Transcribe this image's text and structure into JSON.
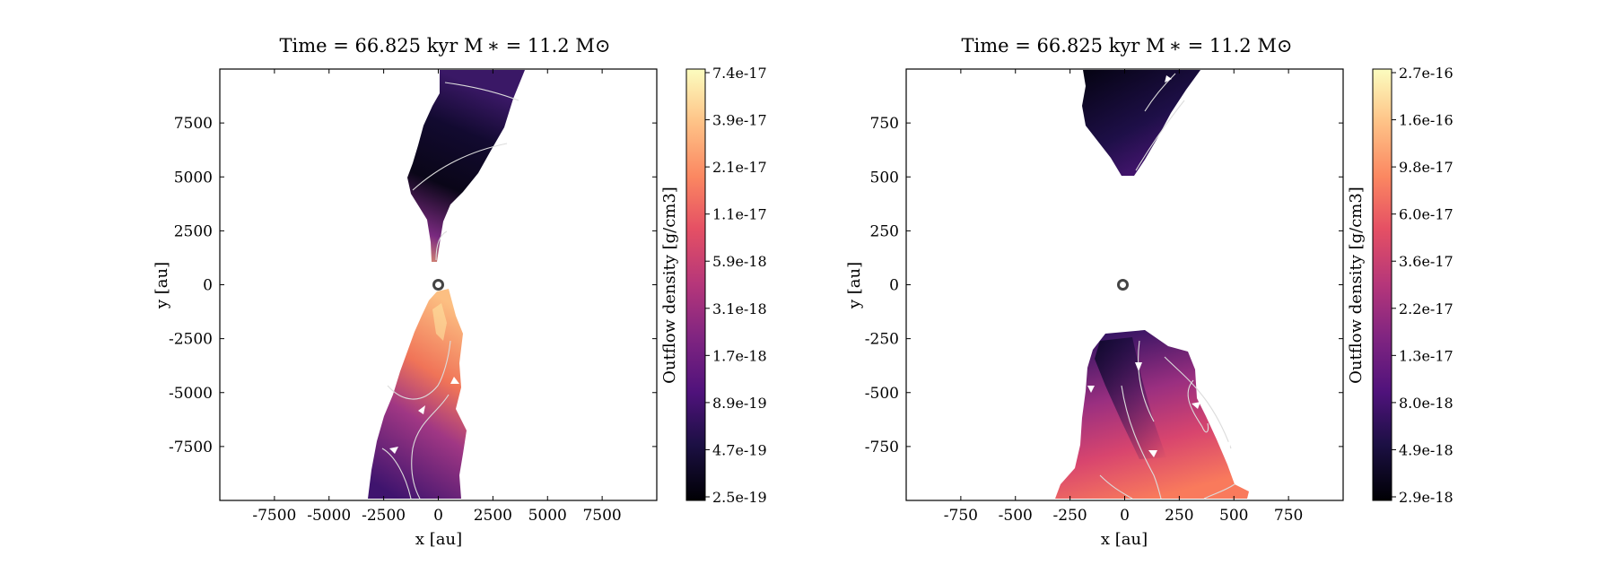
{
  "chart_data": [
    {
      "type": "heatmap",
      "title": "Time = 66.825 kyr    M ∗ = 11.2 M⊙",
      "xlabel": "x [au]",
      "ylabel": "y [au]",
      "xlim": [
        -10000,
        10000
      ],
      "ylim": [
        -10000,
        10000
      ],
      "xticks": [
        -7500,
        -5000,
        -2500,
        0,
        2500,
        5000,
        7500
      ],
      "xtick_labels": [
        "-7500",
        "-5000",
        "-2500",
        "0",
        "2500",
        "5000",
        "7500"
      ],
      "yticks": [
        7500,
        5000,
        2500,
        0,
        -2500,
        -5000,
        -7500
      ],
      "ytick_labels": [
        "7500",
        "5000",
        "2500",
        "0",
        "-2500",
        "-5000",
        "-7500"
      ],
      "colorbar": {
        "label": "Outflow density [g/cm3]",
        "scale": "log",
        "colormap": "magma",
        "tick_labels": [
          "7.4e-17",
          "3.9e-17",
          "2.1e-17",
          "1.1e-17",
          "5.9e-18",
          "3.1e-18",
          "1.7e-18",
          "8.9e-19",
          "4.7e-19",
          "2.5e-19"
        ]
      },
      "star_marker": {
        "x": 0,
        "y": 0
      },
      "legend": "none",
      "grid": false
    },
    {
      "type": "heatmap",
      "title": "Time = 66.825 kyr    M ∗ = 11.2 M⊙",
      "xlabel": "x [au]",
      "ylabel": "y [au]",
      "xlim": [
        -1000,
        1000
      ],
      "ylim": [
        -1000,
        1000
      ],
      "xticks": [
        -750,
        -500,
        -250,
        0,
        250,
        500,
        750
      ],
      "xtick_labels": [
        "-750",
        "-500",
        "-250",
        "0",
        "250",
        "500",
        "750"
      ],
      "yticks": [
        750,
        500,
        250,
        0,
        -250,
        -500,
        -750
      ],
      "ytick_labels": [
        "750",
        "500",
        "250",
        "0",
        "-250",
        "-500",
        "-750"
      ],
      "colorbar": {
        "label": "Outflow density [g/cm3]",
        "scale": "log",
        "colormap": "magma",
        "tick_labels": [
          "2.7e-16",
          "1.6e-16",
          "9.8e-17",
          "6.0e-17",
          "3.6e-17",
          "2.2e-17",
          "1.3e-17",
          "8.0e-18",
          "4.9e-18",
          "2.9e-18"
        ]
      },
      "star_marker": {
        "x": 0,
        "y": 0
      },
      "legend": "none",
      "grid": false
    }
  ]
}
